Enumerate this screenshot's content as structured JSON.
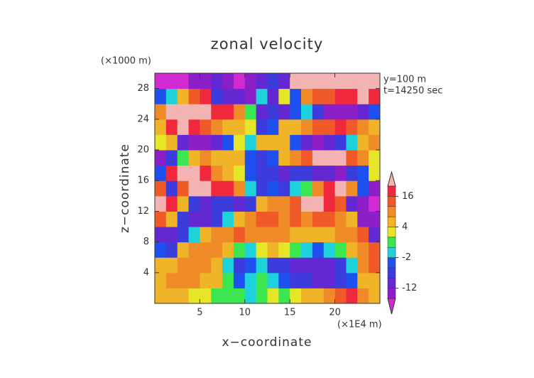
{
  "chart_data": {
    "type": "contourf",
    "title": "zonal velocity",
    "x_label": "x−coordinate",
    "y_label": "z−coordinate",
    "x_unit": "(×1E4 m)",
    "y_unit": "(×1000 m)",
    "annotations": [
      "y=100 m",
      "t=14250 sec"
    ],
    "xlim": [
      0,
      25
    ],
    "ylim": [
      0,
      30
    ],
    "xticks": [
      5,
      10,
      15,
      20
    ],
    "yticks": [
      4,
      8,
      12,
      16,
      20,
      24,
      28
    ],
    "x": [
      0.625,
      1.875,
      3.125,
      4.375,
      5.625,
      6.875,
      8.125,
      9.375,
      10.625,
      11.875,
      13.125,
      14.375,
      15.625,
      16.875,
      18.125,
      19.375,
      20.625,
      21.875,
      23.125,
      24.375
    ],
    "y": [
      1,
      3,
      5,
      7,
      9,
      11,
      13,
      15,
      17,
      19,
      21,
      23,
      25,
      27,
      29
    ],
    "values": [
      [
        6,
        6,
        4,
        3,
        2,
        1,
        1,
        0,
        -1,
        1,
        2,
        1,
        3,
        4,
        6,
        10,
        14,
        16,
        10,
        6
      ],
      [
        6,
        8,
        10,
        8,
        6,
        4,
        0,
        -4,
        -2,
        1,
        -2,
        -4,
        -6,
        -8,
        -10,
        -10,
        -8,
        -4,
        4,
        6
      ],
      [
        4,
        6,
        8,
        10,
        8,
        4,
        -2,
        -6,
        -4,
        -2,
        -6,
        -8,
        -10,
        -12,
        -12,
        -10,
        -8,
        -2,
        8,
        12
      ],
      [
        -4,
        -6,
        4,
        8,
        10,
        10,
        6,
        0,
        -2,
        2,
        4,
        2,
        0,
        -2,
        -4,
        -2,
        0,
        4,
        10,
        14
      ],
      [
        -10,
        -12,
        -8,
        -2,
        4,
        8,
        10,
        12,
        10,
        8,
        10,
        8,
        6,
        6,
        4,
        6,
        8,
        10,
        12,
        -12
      ],
      [
        14,
        6,
        -8,
        -12,
        -10,
        -6,
        -2,
        4,
        10,
        12,
        12,
        10,
        12,
        10,
        14,
        12,
        10,
        4,
        -14,
        -16
      ],
      [
        20,
        18,
        4,
        -8,
        -10,
        -8,
        -6,
        -10,
        -8,
        6,
        10,
        8,
        14,
        20,
        20,
        18,
        14,
        -10,
        -16,
        -18
      ],
      [
        14,
        -8,
        14,
        20,
        20,
        18,
        16,
        10,
        -2,
        -6,
        -4,
        -8,
        -2,
        0,
        8,
        16,
        20,
        10,
        -4,
        -14
      ],
      [
        -4,
        16,
        20,
        20,
        16,
        10,
        6,
        2,
        -4,
        -8,
        -6,
        -10,
        -8,
        -6,
        -10,
        -12,
        -14,
        -8,
        -4,
        2
      ],
      [
        -14,
        -8,
        0,
        4,
        8,
        6,
        4,
        6,
        -4,
        -8,
        -4,
        6,
        10,
        14,
        20,
        22,
        20,
        14,
        8,
        2
      ],
      [
        2,
        6,
        -10,
        -16,
        -14,
        -10,
        -4,
        2,
        -2,
        4,
        6,
        4,
        -4,
        -10,
        -14,
        -12,
        -8,
        -2,
        4,
        8
      ],
      [
        4,
        16,
        20,
        18,
        12,
        8,
        6,
        6,
        2,
        -6,
        -4,
        4,
        6,
        8,
        12,
        14,
        16,
        14,
        10,
        6
      ],
      [
        8,
        20,
        22,
        22,
        20,
        18,
        16,
        10,
        0,
        -10,
        -8,
        -10,
        -4,
        -2,
        -8,
        -14,
        -16,
        -14,
        -10,
        -4
      ],
      [
        -4,
        -2,
        6,
        12,
        16,
        -6,
        -10,
        -12,
        -14,
        -2,
        -12,
        2,
        -4,
        8,
        12,
        14,
        16,
        18,
        20,
        16
      ],
      [
        -18,
        -18,
        -18,
        -16,
        -14,
        -12,
        -16,
        -18,
        -16,
        -10,
        -8,
        -12,
        20,
        22,
        22,
        22,
        22,
        20,
        22,
        20
      ]
    ],
    "levels": [
      -16,
      -12,
      -8,
      -4,
      -2,
      0,
      2,
      4,
      8,
      12,
      16,
      20
    ],
    "colors": [
      "#d22ad2",
      "#8c1ec8",
      "#6428d2",
      "#3c3cdc",
      "#1e50f0",
      "#1ed2dc",
      "#3ce650",
      "#e6e628",
      "#f0b428",
      "#f08c28",
      "#f05a28",
      "#f0283c",
      "#f5b4b4"
    ],
    "colorbar_ticks": [
      -12,
      -2,
      4,
      16
    ]
  }
}
